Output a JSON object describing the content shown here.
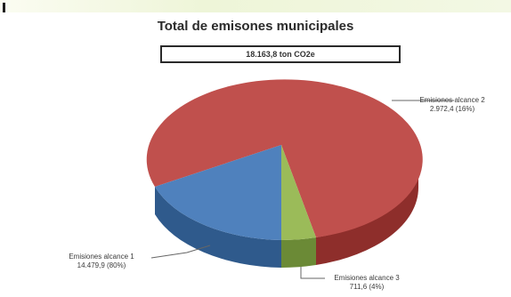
{
  "chart_data": {
    "type": "pie",
    "title": "Total de emisones municipales",
    "subtitle": "18.163,8 ton CO2e",
    "slices": [
      {
        "name": "Emisiones alcance 1",
        "value": 14479.9,
        "percent": "80%",
        "value_label": "14.479,9 (80%)",
        "color": "#4f81bd"
      },
      {
        "name": "Emisiones alcance 2",
        "value": 2972.4,
        "percent": "16%",
        "value_label": "2.972,4 (16%)",
        "color": "#c0504d"
      },
      {
        "name": "Emisiones alcance 3",
        "value": 711.6,
        "percent": "4%",
        "value_label": "711,6 (4%)",
        "color": "#9bbb59"
      }
    ]
  },
  "colors": {
    "alcance_1_side": "#2f5a8c",
    "alcance_2_side": "#8e2e2b",
    "alcance_3_side": "#6b8a36"
  }
}
